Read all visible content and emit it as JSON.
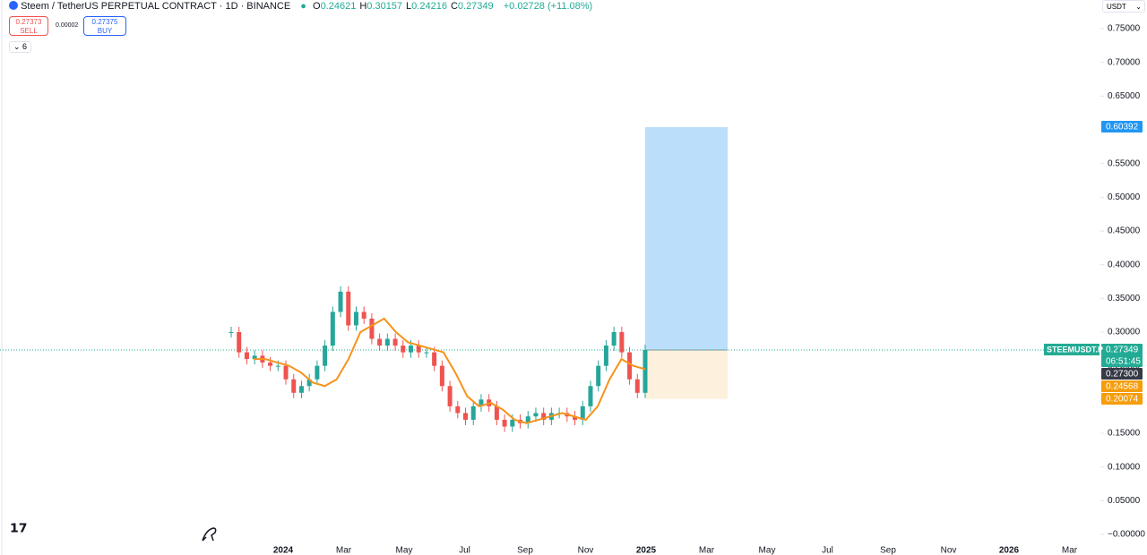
{
  "header": {
    "symbol": "Steem / TetherUS PERPETUAL CONTRACT · 1D · BINANCE",
    "ohlc": [
      {
        "key": "O",
        "value": "0.24621"
      },
      {
        "key": "H",
        "value": "0.30157"
      },
      {
        "key": "L",
        "value": "0.24216"
      },
      {
        "key": "C",
        "value": "0.27349"
      }
    ],
    "change": "+0.02728 (+11.08%)"
  },
  "trade": {
    "sell_price": "0.27373",
    "sell": "SELL",
    "spread": "0.00002",
    "buy_price": "0.27375",
    "buy": "BUY"
  },
  "indicators_count": "6",
  "currency": "USDT",
  "chart_data": {
    "type": "candlestick",
    "series": [
      {
        "name": "STEEMUSDT.P",
        "color_up": "#26a69a",
        "color_down": "#ef5350",
        "values": [
          0.3,
          0.27,
          0.26,
          0.265,
          0.255,
          0.25,
          0.25,
          0.23,
          0.21,
          0.22,
          0.23,
          0.25,
          0.28,
          0.33,
          0.36,
          0.31,
          0.33,
          0.32,
          0.29,
          0.28,
          0.29,
          0.28,
          0.27,
          0.28,
          0.27,
          0.27,
          0.25,
          0.22,
          0.19,
          0.18,
          0.17,
          0.19,
          0.2,
          0.19,
          0.17,
          0.16,
          0.17,
          0.165,
          0.175,
          0.18,
          0.17,
          0.18,
          0.18,
          0.175,
          0.17,
          0.19,
          0.22,
          0.25,
          0.28,
          0.3,
          0.27,
          0.23,
          0.21,
          0.27349
        ]
      },
      {
        "name": "MA",
        "color": "#f7931a",
        "values": [
          0.26,
          0.26,
          0.255,
          0.25,
          0.24,
          0.225,
          0.22,
          0.23,
          0.26,
          0.3,
          0.31,
          0.32,
          0.3,
          0.285,
          0.28,
          0.275,
          0.27,
          0.24,
          0.205,
          0.19,
          0.195,
          0.185,
          0.17,
          0.165,
          0.17,
          0.175,
          0.18,
          0.175,
          0.17,
          0.19,
          0.23,
          0.26,
          0.25,
          0.245
        ]
      }
    ],
    "x_labels": [
      {
        "label": "2024",
        "bold": true
      },
      {
        "label": "Mar"
      },
      {
        "label": "May"
      },
      {
        "label": "Jul"
      },
      {
        "label": "Sep"
      },
      {
        "label": "Nov"
      },
      {
        "label": "2025",
        "bold": true
      },
      {
        "label": "Mar"
      },
      {
        "label": "May"
      },
      {
        "label": "Jul"
      },
      {
        "label": "Sep"
      },
      {
        "label": "Nov"
      },
      {
        "label": "2026",
        "bold": true
      },
      {
        "label": "Mar"
      }
    ],
    "ylim": [
      0,
      0.75
    ],
    "yticks": [
      {
        "value": 0.75,
        "label": "0.75000"
      },
      {
        "value": 0.7,
        "label": "0.70000"
      },
      {
        "value": 0.65,
        "label": "0.65000"
      },
      {
        "value": 0.6,
        "label": "0.60000"
      },
      {
        "value": 0.55,
        "label": "0.55000"
      },
      {
        "value": 0.5,
        "label": "0.50000"
      },
      {
        "value": 0.45,
        "label": "0.45000"
      },
      {
        "value": 0.4,
        "label": "0.40000"
      },
      {
        "value": 0.35,
        "label": "0.35000"
      },
      {
        "value": 0.3,
        "label": "0.30000"
      },
      {
        "value": 0.25,
        "label": "0.25000"
      },
      {
        "value": 0.2,
        "label": "0.20000"
      },
      {
        "value": 0.15,
        "label": "0.15000"
      },
      {
        "value": 0.1,
        "label": "0.10000"
      },
      {
        "value": 0.05,
        "label": "0.05000"
      },
      {
        "value": 0,
        "label": "−0.00000"
      }
    ],
    "position": {
      "target": 0.60392,
      "entry": 0.27349,
      "stop": 0.20074,
      "profit_color": "#bbdefb",
      "loss_color": "#fdf0dc"
    },
    "price_labels": [
      {
        "value": 0.60392,
        "label": "0.60392",
        "color": "#2196f3"
      },
      {
        "value": 0.27349,
        "label": "0.27349",
        "tag": "STEEMUSDT.P",
        "countdown": "06:51:45",
        "color": "#22ab94"
      },
      {
        "value": 0.273,
        "label": "0.27300",
        "color": "#363a45"
      },
      {
        "value": 0.24568,
        "label": "0.24568",
        "color": "#f59d0b"
      },
      {
        "value": 0.20074,
        "label": "0.20074",
        "color": "#f59d0b"
      }
    ]
  }
}
